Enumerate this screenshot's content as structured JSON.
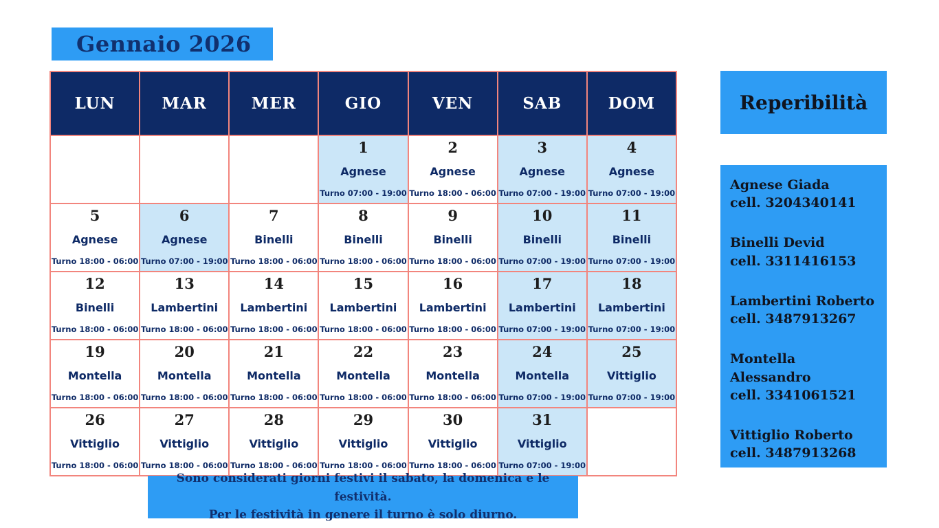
{
  "title": "Gennaio 2026",
  "calendar": {
    "headers": [
      "LUN",
      "MAR",
      "MER",
      "GIO",
      "VEN",
      "SAB",
      "DOM"
    ],
    "weeks": [
      [
        null,
        null,
        null,
        {
          "day": "1",
          "name": "Agnese",
          "shift": "Turno 07:00 - 19:00",
          "festive": true
        },
        {
          "day": "2",
          "name": "Agnese",
          "shift": "Turno 18:00 - 06:00",
          "festive": false
        },
        {
          "day": "3",
          "name": "Agnese",
          "shift": "Turno 07:00 - 19:00",
          "festive": true
        },
        {
          "day": "4",
          "name": "Agnese",
          "shift": "Turno 07:00 - 19:00",
          "festive": true
        }
      ],
      [
        {
          "day": "5",
          "name": "Agnese",
          "shift": "Turno 18:00 - 06:00",
          "festive": false
        },
        {
          "day": "6",
          "name": "Agnese",
          "shift": "Turno 07:00 - 19:00",
          "festive": true
        },
        {
          "day": "7",
          "name": "Binelli",
          "shift": "Turno 18:00 - 06:00",
          "festive": false
        },
        {
          "day": "8",
          "name": "Binelli",
          "shift": "Turno 18:00 - 06:00",
          "festive": false
        },
        {
          "day": "9",
          "name": "Binelli",
          "shift": "Turno 18:00 - 06:00",
          "festive": false
        },
        {
          "day": "10",
          "name": "Binelli",
          "shift": "Turno 07:00 - 19:00",
          "festive": true
        },
        {
          "day": "11",
          "name": "Binelli",
          "shift": "Turno 07:00 - 19:00",
          "festive": true
        }
      ],
      [
        {
          "day": "12",
          "name": "Binelli",
          "shift": "Turno 18:00 - 06:00",
          "festive": false
        },
        {
          "day": "13",
          "name": "Lambertini",
          "shift": "Turno 18:00 - 06:00",
          "festive": false
        },
        {
          "day": "14",
          "name": "Lambertini",
          "shift": "Turno 18:00 - 06:00",
          "festive": false
        },
        {
          "day": "15",
          "name": "Lambertini",
          "shift": "Turno 18:00 - 06:00",
          "festive": false
        },
        {
          "day": "16",
          "name": "Lambertini",
          "shift": "Turno 18:00 - 06:00",
          "festive": false
        },
        {
          "day": "17",
          "name": "Lambertini",
          "shift": "Turno 07:00 - 19:00",
          "festive": true
        },
        {
          "day": "18",
          "name": "Lambertini",
          "shift": "Turno 07:00 - 19:00",
          "festive": true
        }
      ],
      [
        {
          "day": "19",
          "name": "Montella",
          "shift": "Turno 18:00 - 06:00",
          "festive": false
        },
        {
          "day": "20",
          "name": "Montella",
          "shift": "Turno 18:00 - 06:00",
          "festive": false
        },
        {
          "day": "21",
          "name": "Montella",
          "shift": "Turno 18:00 - 06:00",
          "festive": false
        },
        {
          "day": "22",
          "name": "Montella",
          "shift": "Turno 18:00 - 06:00",
          "festive": false
        },
        {
          "day": "23",
          "name": "Montella",
          "shift": "Turno 18:00 - 06:00",
          "festive": false
        },
        {
          "day": "24",
          "name": "Montella",
          "shift": "Turno 07:00 - 19:00",
          "festive": true
        },
        {
          "day": "25",
          "name": "Vittiglio",
          "shift": "Turno 07:00 - 19:00",
          "festive": true
        }
      ],
      [
        {
          "day": "26",
          "name": "Vittiglio",
          "shift": "Turno 18:00 - 06:00",
          "festive": false
        },
        {
          "day": "27",
          "name": "Vittiglio",
          "shift": "Turno 18:00 - 06:00",
          "festive": false
        },
        {
          "day": "28",
          "name": "Vittiglio",
          "shift": "Turno 18:00 - 06:00",
          "festive": false
        },
        {
          "day": "29",
          "name": "Vittiglio",
          "shift": "Turno 18:00 - 06:00",
          "festive": false
        },
        {
          "day": "30",
          "name": "Vittiglio",
          "shift": "Turno 18:00 - 06:00",
          "festive": false
        },
        {
          "day": "31",
          "name": "Vittiglio",
          "shift": "Turno 07:00 - 19:00",
          "festive": true
        },
        null
      ]
    ]
  },
  "sidebar": {
    "title": "Reperibilità",
    "contacts": [
      {
        "name": "Agnese Giada",
        "phone": "cell. 3204340141"
      },
      {
        "name": "Binelli Devid",
        "phone": "cell. 3311416153"
      },
      {
        "name": "Lambertini Roberto",
        "phone": "cell. 3487913267"
      },
      {
        "name": "Montella Alessandro",
        "phone": "cell. 3341061521"
      },
      {
        "name": "Vittiglio Roberto",
        "phone": "cell. 3487913268"
      }
    ]
  },
  "footer": {
    "line1": "Sono considerati giorni festivi il sabato, la domenica e le festività.",
    "line2": "Per le festività in genere il turno è solo diurno."
  },
  "colors": {
    "accent_blue": "#2e9cf4",
    "header_navy": "#0e2a66",
    "festive_blue": "#cbe6f8",
    "border_salmon": "#f2857d",
    "title_navy": "#11306e",
    "text_dark": "#10141f"
  }
}
